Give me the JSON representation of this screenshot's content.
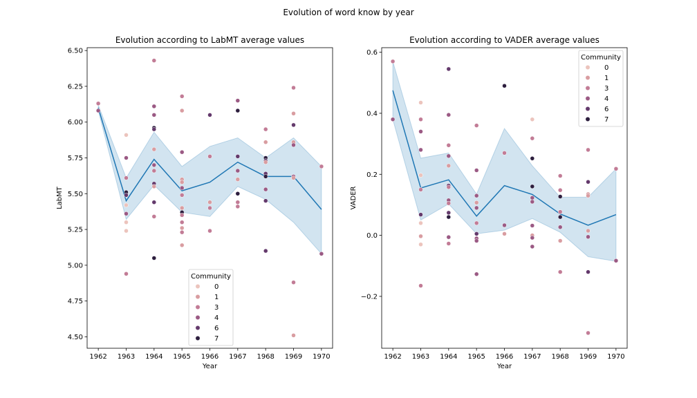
{
  "figure": {
    "suptitle": "Evolution of word know by year"
  },
  "legend": {
    "title": "Community",
    "entries": [
      "0",
      "1",
      "3",
      "4",
      "6",
      "7"
    ],
    "colors": [
      "#ecc4bd",
      "#d99da1",
      "#c27c96",
      "#9b5a84",
      "#643a6c",
      "#2d1e3e"
    ]
  },
  "style": {
    "line_color": "#1f77b4",
    "band_color": "#1f77b4"
  },
  "chart_data": [
    {
      "type": "scatter",
      "title": "Evolution according to LabMT average values",
      "xlabel": "Year",
      "ylabel": "LabMT",
      "xlim": [
        1961.6,
        1970.4
      ],
      "ylim": [
        4.42,
        6.52
      ],
      "xticks": [
        1962,
        1963,
        1964,
        1965,
        1966,
        1967,
        1968,
        1969,
        1970
      ],
      "yticks": [
        4.5,
        4.75,
        5.0,
        5.25,
        5.5,
        5.75,
        6.0,
        6.25,
        6.5
      ],
      "ytick_labels": [
        "4.50",
        "4.75",
        "5.00",
        "5.25",
        "5.50",
        "5.75",
        "6.00",
        "6.25",
        "6.50"
      ],
      "legend_position": "bottom-center",
      "mean_line": {
        "x": [
          1962,
          1963,
          1964,
          1965,
          1966,
          1967,
          1968,
          1969,
          1970
        ],
        "y": [
          6.1,
          5.45,
          5.74,
          5.52,
          5.58,
          5.72,
          5.62,
          5.62,
          5.39
        ]
      },
      "ci_band": {
        "x": [
          1962,
          1963,
          1964,
          1965,
          1966,
          1967,
          1968,
          1969,
          1970
        ],
        "lower": [
          6.08,
          5.32,
          5.56,
          5.37,
          5.34,
          5.55,
          5.46,
          5.3,
          5.08
        ],
        "upper": [
          6.12,
          5.61,
          5.93,
          5.69,
          5.83,
          5.89,
          5.75,
          5.89,
          5.69
        ]
      },
      "points": [
        {
          "x": 1962,
          "y": 6.13,
          "c": 3
        },
        {
          "x": 1962,
          "y": 6.08,
          "c": 4
        },
        {
          "x": 1963,
          "y": 5.91,
          "c": 0
        },
        {
          "x": 1963,
          "y": 5.75,
          "c": 4
        },
        {
          "x": 1963,
          "y": 5.61,
          "c": 3
        },
        {
          "x": 1963,
          "y": 5.51,
          "c": 7
        },
        {
          "x": 1963,
          "y": 5.49,
          "c": 6
        },
        {
          "x": 1963,
          "y": 5.42,
          "c": 0
        },
        {
          "x": 1963,
          "y": 5.36,
          "c": 4
        },
        {
          "x": 1963,
          "y": 5.3,
          "c": 0
        },
        {
          "x": 1963,
          "y": 5.24,
          "c": 0
        },
        {
          "x": 1963,
          "y": 4.94,
          "c": 3
        },
        {
          "x": 1964,
          "y": 6.43,
          "c": 3
        },
        {
          "x": 1964,
          "y": 6.11,
          "c": 4
        },
        {
          "x": 1964,
          "y": 6.05,
          "c": 4
        },
        {
          "x": 1964,
          "y": 5.96,
          "c": 7
        },
        {
          "x": 1964,
          "y": 5.95,
          "c": 6
        },
        {
          "x": 1964,
          "y": 5.81,
          "c": 1
        },
        {
          "x": 1964,
          "y": 5.7,
          "c": 4
        },
        {
          "x": 1964,
          "y": 5.66,
          "c": 3
        },
        {
          "x": 1964,
          "y": 5.57,
          "c": 6
        },
        {
          "x": 1964,
          "y": 5.55,
          "c": 1
        },
        {
          "x": 1964,
          "y": 5.44,
          "c": 6
        },
        {
          "x": 1964,
          "y": 5.34,
          "c": 3
        },
        {
          "x": 1964,
          "y": 5.05,
          "c": 7
        },
        {
          "x": 1965,
          "y": 6.18,
          "c": 3
        },
        {
          "x": 1965,
          "y": 6.08,
          "c": 1
        },
        {
          "x": 1965,
          "y": 5.79,
          "c": 4
        },
        {
          "x": 1965,
          "y": 5.6,
          "c": 1
        },
        {
          "x": 1965,
          "y": 5.58,
          "c": 1
        },
        {
          "x": 1965,
          "y": 5.54,
          "c": 4
        },
        {
          "x": 1965,
          "y": 5.49,
          "c": 3
        },
        {
          "x": 1965,
          "y": 5.4,
          "c": 1
        },
        {
          "x": 1965,
          "y": 5.37,
          "c": 7
        },
        {
          "x": 1965,
          "y": 5.35,
          "c": 3
        },
        {
          "x": 1965,
          "y": 5.3,
          "c": 3
        },
        {
          "x": 1965,
          "y": 5.26,
          "c": 1
        },
        {
          "x": 1965,
          "y": 5.23,
          "c": 3
        },
        {
          "x": 1965,
          "y": 5.14,
          "c": 1
        },
        {
          "x": 1966,
          "y": 6.05,
          "c": 6
        },
        {
          "x": 1966,
          "y": 5.76,
          "c": 3
        },
        {
          "x": 1966,
          "y": 5.44,
          "c": 1
        },
        {
          "x": 1966,
          "y": 5.4,
          "c": 3
        },
        {
          "x": 1966,
          "y": 5.24,
          "c": 3
        },
        {
          "x": 1967,
          "y": 6.15,
          "c": 4
        },
        {
          "x": 1967,
          "y": 6.08,
          "c": 7
        },
        {
          "x": 1967,
          "y": 5.76,
          "c": 6
        },
        {
          "x": 1967,
          "y": 5.66,
          "c": 4
        },
        {
          "x": 1967,
          "y": 5.6,
          "c": 1
        },
        {
          "x": 1967,
          "y": 5.5,
          "c": 7
        },
        {
          "x": 1967,
          "y": 5.44,
          "c": 3
        },
        {
          "x": 1967,
          "y": 5.41,
          "c": 3
        },
        {
          "x": 1968,
          "y": 5.95,
          "c": 3
        },
        {
          "x": 1968,
          "y": 5.86,
          "c": 1
        },
        {
          "x": 1968,
          "y": 5.75,
          "c": 7
        },
        {
          "x": 1968,
          "y": 5.73,
          "c": 6
        },
        {
          "x": 1968,
          "y": 5.72,
          "c": 1
        },
        {
          "x": 1968,
          "y": 5.64,
          "c": 6
        },
        {
          "x": 1968,
          "y": 5.62,
          "c": 7
        },
        {
          "x": 1968,
          "y": 5.53,
          "c": 4
        },
        {
          "x": 1968,
          "y": 5.45,
          "c": 6
        },
        {
          "x": 1968,
          "y": 5.1,
          "c": 6
        },
        {
          "x": 1969,
          "y": 6.24,
          "c": 3
        },
        {
          "x": 1969,
          "y": 6.06,
          "c": 1
        },
        {
          "x": 1969,
          "y": 5.98,
          "c": 6
        },
        {
          "x": 1969,
          "y": 5.86,
          "c": 1
        },
        {
          "x": 1969,
          "y": 5.84,
          "c": 4
        },
        {
          "x": 1969,
          "y": 5.62,
          "c": 4
        },
        {
          "x": 1969,
          "y": 5.61,
          "c": 1
        },
        {
          "x": 1969,
          "y": 4.88,
          "c": 3
        },
        {
          "x": 1969,
          "y": 4.51,
          "c": 1
        },
        {
          "x": 1970,
          "y": 5.69,
          "c": 3
        },
        {
          "x": 1970,
          "y": 5.08,
          "c": 4
        }
      ]
    },
    {
      "type": "scatter",
      "title": "Evolution according to VADER average values",
      "xlabel": "Year",
      "ylabel": "VADER",
      "xlim": [
        1961.6,
        1970.4
      ],
      "ylim": [
        -0.37,
        0.615
      ],
      "xticks": [
        1962,
        1963,
        1964,
        1965,
        1966,
        1967,
        1968,
        1969,
        1970
      ],
      "yticks": [
        -0.2,
        0.0,
        0.2,
        0.4,
        0.6
      ],
      "ytick_labels": [
        "−0.2",
        "0.0",
        "0.2",
        "0.4",
        "0.6"
      ],
      "legend_position": "top-right",
      "mean_line": {
        "x": [
          1962,
          1963,
          1964,
          1965,
          1966,
          1967,
          1968,
          1969,
          1970
        ],
        "y": [
          0.475,
          0.155,
          0.182,
          0.063,
          0.163,
          0.134,
          0.07,
          0.033,
          0.068
        ]
      },
      "ci_band": {
        "x": [
          1962,
          1963,
          1964,
          1965,
          1966,
          1967,
          1968,
          1969,
          1970
        ],
        "lower": [
          0.38,
          0.05,
          0.103,
          0.005,
          0.017,
          0.055,
          0.01,
          -0.07,
          -0.085
        ],
        "upper": [
          0.57,
          0.253,
          0.27,
          0.135,
          0.35,
          0.228,
          0.125,
          0.125,
          0.218
        ]
      },
      "points": [
        {
          "x": 1962,
          "y": 0.57,
          "c": 3
        },
        {
          "x": 1962,
          "y": 0.38,
          "c": 4
        },
        {
          "x": 1963,
          "y": 0.435,
          "c": 0
        },
        {
          "x": 1963,
          "y": 0.38,
          "c": 3
        },
        {
          "x": 1963,
          "y": 0.34,
          "c": 4
        },
        {
          "x": 1963,
          "y": 0.28,
          "c": 4
        },
        {
          "x": 1963,
          "y": 0.197,
          "c": 0
        },
        {
          "x": 1963,
          "y": 0.15,
          "c": 3
        },
        {
          "x": 1963,
          "y": 0.068,
          "c": 6
        },
        {
          "x": 1963,
          "y": 0.04,
          "c": 0
        },
        {
          "x": 1963,
          "y": -0.003,
          "c": 1
        },
        {
          "x": 1963,
          "y": -0.03,
          "c": 0
        },
        {
          "x": 1963,
          "y": -0.165,
          "c": 3
        },
        {
          "x": 1964,
          "y": 0.545,
          "c": 6
        },
        {
          "x": 1964,
          "y": 0.395,
          "c": 4
        },
        {
          "x": 1964,
          "y": 0.295,
          "c": 3
        },
        {
          "x": 1964,
          "y": 0.26,
          "c": 4
        },
        {
          "x": 1964,
          "y": 0.228,
          "c": 1
        },
        {
          "x": 1964,
          "y": 0.163,
          "c": 6
        },
        {
          "x": 1964,
          "y": 0.158,
          "c": 3
        },
        {
          "x": 1964,
          "y": 0.115,
          "c": 4
        },
        {
          "x": 1964,
          "y": 0.105,
          "c": 3
        },
        {
          "x": 1964,
          "y": 0.074,
          "c": 6
        },
        {
          "x": 1964,
          "y": 0.06,
          "c": 7
        },
        {
          "x": 1964,
          "y": -0.006,
          "c": 4
        },
        {
          "x": 1964,
          "y": -0.027,
          "c": 3
        },
        {
          "x": 1965,
          "y": 0.36,
          "c": 3
        },
        {
          "x": 1965,
          "y": 0.213,
          "c": 4
        },
        {
          "x": 1965,
          "y": 0.13,
          "c": 4
        },
        {
          "x": 1965,
          "y": 0.107,
          "c": 1
        },
        {
          "x": 1965,
          "y": 0.09,
          "c": 4
        },
        {
          "x": 1965,
          "y": 0.04,
          "c": 3
        },
        {
          "x": 1965,
          "y": 0.005,
          "c": 6
        },
        {
          "x": 1965,
          "y": -0.01,
          "c": 4
        },
        {
          "x": 1965,
          "y": -0.018,
          "c": 4
        },
        {
          "x": 1965,
          "y": -0.127,
          "c": 4
        },
        {
          "x": 1966,
          "y": 0.49,
          "c": 7
        },
        {
          "x": 1966,
          "y": 0.27,
          "c": 3
        },
        {
          "x": 1966,
          "y": 0.033,
          "c": 4
        },
        {
          "x": 1966,
          "y": 0.005,
          "c": 1
        },
        {
          "x": 1967,
          "y": 0.38,
          "c": 0
        },
        {
          "x": 1967,
          "y": 0.318,
          "c": 3
        },
        {
          "x": 1967,
          "y": 0.252,
          "c": 7
        },
        {
          "x": 1967,
          "y": 0.16,
          "c": 7
        },
        {
          "x": 1967,
          "y": 0.123,
          "c": 4
        },
        {
          "x": 1967,
          "y": 0.11,
          "c": 4
        },
        {
          "x": 1967,
          "y": 0.032,
          "c": 4
        },
        {
          "x": 1967,
          "y": 0.0,
          "c": 1
        },
        {
          "x": 1967,
          "y": -0.008,
          "c": 4
        },
        {
          "x": 1967,
          "y": -0.037,
          "c": 4
        },
        {
          "x": 1968,
          "y": 0.195,
          "c": 3
        },
        {
          "x": 1968,
          "y": 0.148,
          "c": 3
        },
        {
          "x": 1968,
          "y": 0.127,
          "c": 7
        },
        {
          "x": 1968,
          "y": 0.077,
          "c": 3
        },
        {
          "x": 1968,
          "y": 0.06,
          "c": 7
        },
        {
          "x": 1968,
          "y": 0.027,
          "c": 4
        },
        {
          "x": 1968,
          "y": -0.018,
          "c": 1
        },
        {
          "x": 1968,
          "y": -0.12,
          "c": 3
        },
        {
          "x": 1969,
          "y": 0.28,
          "c": 3
        },
        {
          "x": 1969,
          "y": 0.175,
          "c": 6
        },
        {
          "x": 1969,
          "y": 0.135,
          "c": 1
        },
        {
          "x": 1969,
          "y": 0.13,
          "c": 1
        },
        {
          "x": 1969,
          "y": 0.015,
          "c": 1
        },
        {
          "x": 1969,
          "y": -0.005,
          "c": 4
        },
        {
          "x": 1969,
          "y": -0.12,
          "c": 6
        },
        {
          "x": 1969,
          "y": -0.32,
          "c": 3
        },
        {
          "x": 1970,
          "y": 0.218,
          "c": 3
        },
        {
          "x": 1970,
          "y": -0.083,
          "c": 4
        }
      ]
    }
  ]
}
